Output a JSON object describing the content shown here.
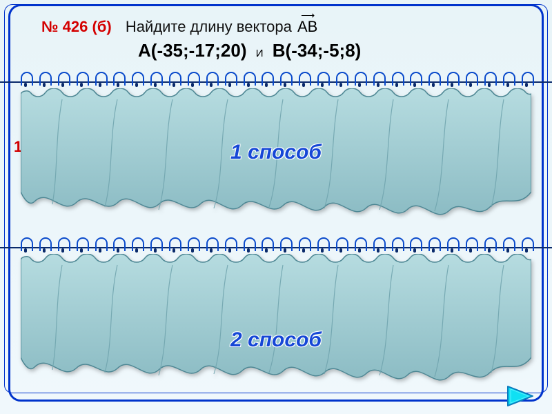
{
  "frame": {
    "border_color": "#0033cc",
    "radius": 18
  },
  "problem": {
    "number": "№ 426 (б)",
    "prompt": "Найдите длину вектора",
    "vector_label": "АВ",
    "point_a_label": "A",
    "point_a_coords": "(-35;-17;20)",
    "and": "И",
    "point_b_label": "B",
    "point_b_coords": "(-34;-5;8)"
  },
  "side_number": "1",
  "curtain": {
    "fill": "#9fc9cf",
    "stroke": "#4e8794",
    "spiral_color": "#0a4acb",
    "rail_color": "#0a2a6b",
    "spiral_count": 28
  },
  "methods": {
    "m1": "1 способ",
    "m2": "2 способ",
    "label_color": "#1547d6",
    "fontsize": 30
  },
  "nav": {
    "icon": "next-triangle",
    "fill": "#0fe0f3",
    "border": "#0a7bbd"
  }
}
